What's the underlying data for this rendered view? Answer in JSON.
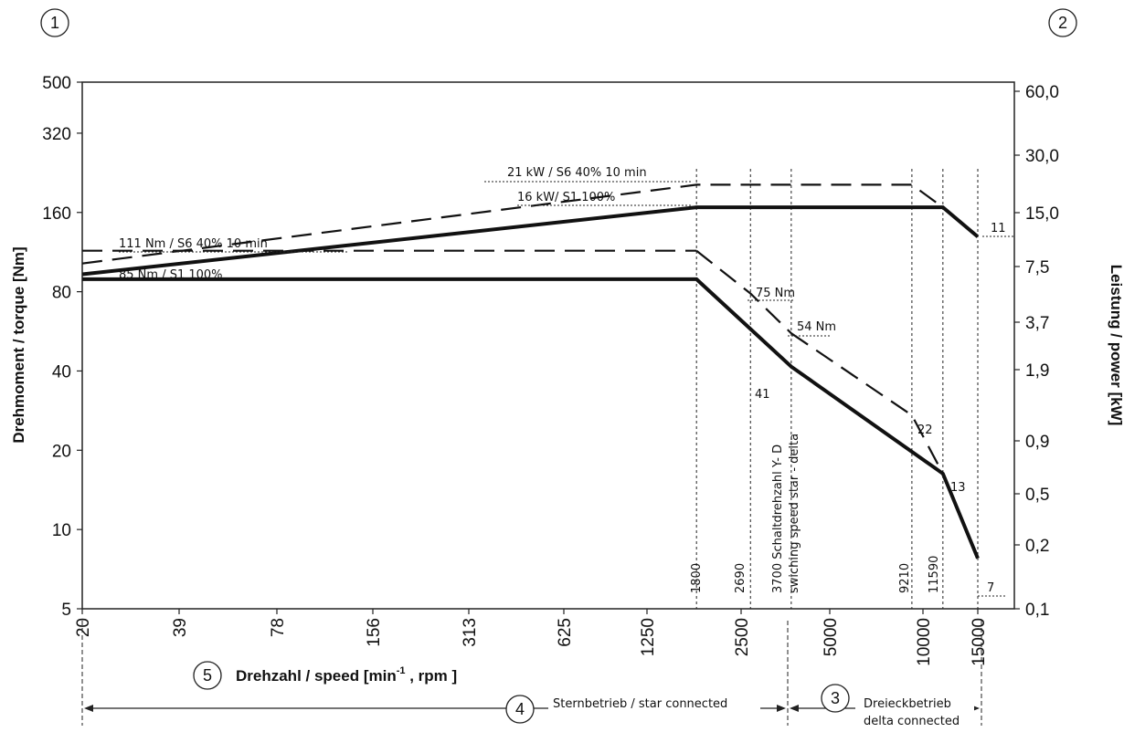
{
  "chart_data": {
    "type": "line",
    "xlabel": "Drehzahl / speed [min-1 , rpm ]",
    "xlabel_main": "Drehzahl / speed [min",
    "xlabel_sup": "-1",
    "xlabel_tail": " , rpm ]",
    "ylabel_left": "Drehmoment / torque [Nm]",
    "ylabel_right": "Leistung / power [kW]",
    "x_scale": "log",
    "y_scale": "log",
    "xlim": [
      20,
      20000
    ],
    "ylim_left": [
      5,
      500
    ],
    "x_ticks": [
      "20",
      "39",
      "78",
      "156",
      "313",
      "625",
      "1250",
      "2500",
      "5000",
      "10000",
      "15000"
    ],
    "x_tick_values": [
      20,
      39,
      78,
      156,
      313,
      625,
      1250,
      2500,
      5000,
      10000,
      15000
    ],
    "y_ticks_left": [
      "5",
      "10",
      "20",
      "40",
      "80",
      "160",
      "320",
      "500"
    ],
    "y_tick_values_left": [
      5,
      10,
      20,
      40,
      80,
      160,
      320,
      500
    ],
    "y_ticks_right": [
      "0,1",
      "0,2",
      "0,5",
      "0,9",
      "1,9",
      "3,7",
      "7,5",
      "15,0",
      "30,0",
      "60,0"
    ],
    "series": [
      {
        "name": "85 Nm / S1 100%",
        "style": "solid",
        "axis": "left",
        "x": [
          20,
          1800,
          3700,
          11590,
          15000
        ],
        "y": [
          85,
          85,
          41,
          13,
          7
        ]
      },
      {
        "name": "111 Nm / S6 40% 10 min",
        "style": "dashed",
        "axis": "left",
        "x": [
          20,
          1800
        ],
        "y": [
          111,
          111
        ]
      },
      {
        "name": "",
        "style": "dashed",
        "axis": "left",
        "x": [
          1800,
          2690,
          3700
        ],
        "y": [
          111,
          75,
          54
        ]
      },
      {
        "name": "",
        "style": "dashed",
        "axis": "left",
        "x": [
          3700,
          9210,
          11590
        ],
        "y": [
          54,
          22,
          13
        ]
      },
      {
        "name": "16 kW/ S1 100%",
        "style": "solid",
        "axis": "right",
        "x": [
          20,
          1800,
          11590,
          15000
        ],
        "y": [
          6.8,
          16,
          16,
          11
        ]
      },
      {
        "name": "21 kW / S6 40% 10 min",
        "style": "dashed",
        "axis": "right",
        "x": [
          20,
          1800,
          3700,
          9210,
          11590
        ],
        "y": [
          7.8,
          21,
          21,
          21,
          16
        ]
      }
    ],
    "annotations": {
      "torque_s6": "111 Nm / S6 40% 10 min",
      "torque_s1": "85 Nm / S1 100%",
      "power_s6": "21 kW / S6 40% 10 min",
      "power_s1": "16 kW/ S1 100%",
      "n75": "75 Nm",
      "n54": "54 Nm",
      "n41": "41",
      "n22": "22",
      "n13": "13",
      "n7": "7",
      "n11": "11",
      "v1800": "1800",
      "v2690": "2690",
      "v3700": "3700 Schaltdrehzahl Y- D",
      "v3700b": "swiching speed star - delta",
      "v9210": "9210",
      "v11590": "11590"
    },
    "ranges": {
      "star": "Sternbetrieb / star connected",
      "delta_1": "Dreieckbetrieb",
      "delta_2": "delta connected"
    },
    "markers": [
      "1",
      "2",
      "3",
      "4",
      "5"
    ],
    "grid": false,
    "legend": "none"
  }
}
